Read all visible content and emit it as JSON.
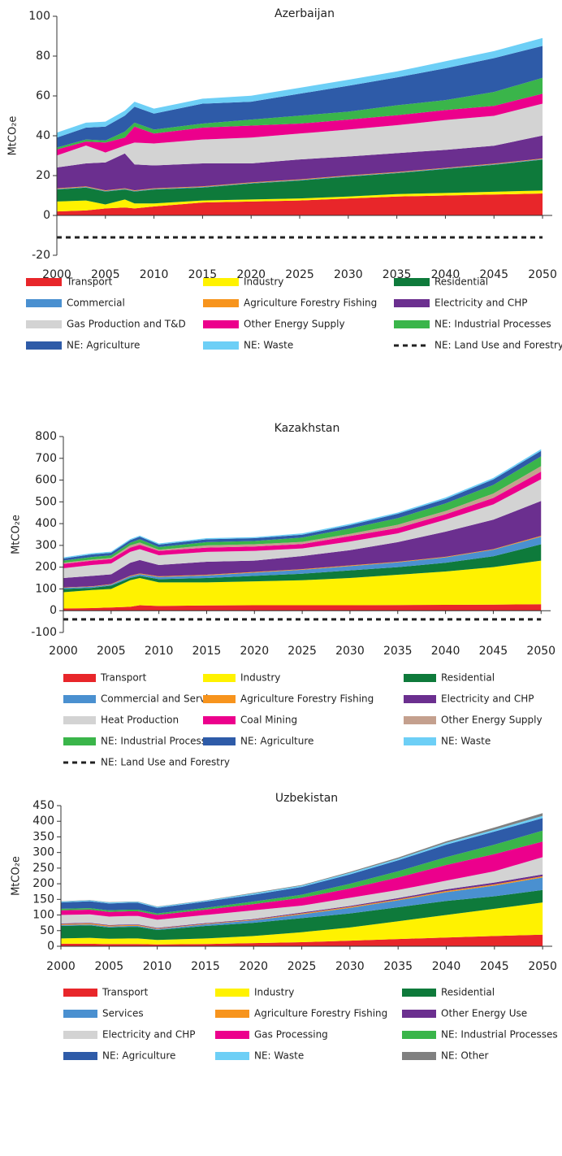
{
  "chart_data": [
    {
      "type": "stacked_area",
      "title": "Azerbaijan",
      "y_label": "MtCO₂e",
      "x": [
        2000,
        2003,
        2005,
        2007,
        2008,
        2010,
        2015,
        2020,
        2025,
        2030,
        2035,
        2040,
        2045,
        2050
      ],
      "xlim": [
        2000,
        2051
      ],
      "xticks": [
        2000,
        2005,
        2010,
        2015,
        2020,
        2025,
        2030,
        2035,
        2040,
        2045,
        2050
      ],
      "ylim": [
        -20,
        100
      ],
      "yticks": [
        -20,
        0,
        20,
        40,
        60,
        80,
        100
      ],
      "series": [
        {
          "name": "Transport",
          "color": "#e8262a",
          "values": [
            2,
            2.5,
            3.5,
            4,
            3.5,
            4.5,
            6.5,
            7,
            7.5,
            8.5,
            9.5,
            10,
            10.5,
            11
          ]
        },
        {
          "name": "Industry",
          "color": "#fff200",
          "values": [
            5,
            5,
            2,
            4,
            2.5,
            1.5,
            1,
            1,
            1,
            1,
            1.2,
            1.3,
            1.4,
            1.5
          ]
        },
        {
          "name": "Residential",
          "color": "#0e7a3b",
          "values": [
            6,
            6.5,
            6.5,
            5,
            6,
            7,
            6.5,
            8,
            9,
            10,
            10.5,
            12,
            13.5,
            15.5
          ]
        },
        {
          "name": "Commercial",
          "color": "#4a90d0",
          "values": [
            0.3,
            0.3,
            0.3,
            0.3,
            0.3,
            0.3,
            0.3,
            0.3,
            0.3,
            0.3,
            0.3,
            0.3,
            0.3,
            0.3
          ]
        },
        {
          "name": "Agriculture Forestry Fishing",
          "color": "#f7941d",
          "values": [
            0.3,
            0.3,
            0.3,
            0.3,
            0.3,
            0.3,
            0.3,
            0.3,
            0.3,
            0.3,
            0.3,
            0.3,
            0.3,
            0.3
          ]
        },
        {
          "name": "Electricity and CHP",
          "color": "#6b2f8f",
          "values": [
            10.5,
            11.5,
            14,
            17.5,
            13,
            11.5,
            11.5,
            9.5,
            10,
            9.5,
            9.5,
            9,
            9,
            11.5
          ]
        },
        {
          "name": "Gas Production and T&D",
          "color": "#d3d3d3",
          "values": [
            6,
            9,
            5,
            4,
            11,
            11,
            12,
            13,
            13,
            13.5,
            14,
            15,
            15,
            16
          ]
        },
        {
          "name": "Other Energy Supply",
          "color": "#ec008c",
          "values": [
            3,
            2,
            5,
            4,
            8,
            5,
            6,
            6,
            5,
            5,
            5,
            5,
            5,
            5
          ]
        },
        {
          "name": "NE: Industrial Processes",
          "color": "#3ab54a",
          "values": [
            1,
            1,
            1,
            3,
            2,
            2,
            2,
            3,
            4,
            4,
            5,
            5,
            7,
            8
          ]
        },
        {
          "name": "NE: Agriculture",
          "color": "#2e5ba8",
          "values": [
            5,
            6,
            7,
            8,
            8,
            8,
            10,
            9,
            11,
            13,
            14,
            16,
            17,
            16
          ]
        },
        {
          "name": "NE: Waste",
          "color": "#6dcff6",
          "values": [
            2.5,
            2.5,
            2.5,
            2.5,
            2.5,
            2.5,
            2.5,
            3,
            3,
            3,
            3,
            3.5,
            3.5,
            4
          ]
        },
        {
          "name": "NE: Land Use and Forestry",
          "color": "#222222",
          "line_style": "dashed",
          "values": [
            -11,
            -11,
            -11,
            -11,
            -11,
            -11,
            -11,
            -11,
            -11,
            -11,
            -11,
            -11,
            -11,
            -11
          ]
        }
      ]
    },
    {
      "type": "stacked_area",
      "title": "Kazakhstan",
      "y_label": "MtCO₂e",
      "x": [
        2000,
        2003,
        2005,
        2007,
        2008,
        2010,
        2015,
        2020,
        2025,
        2030,
        2035,
        2040,
        2045,
        2050
      ],
      "xlim": [
        2000,
        2051
      ],
      "xticks": [
        2000,
        2005,
        2010,
        2015,
        2020,
        2025,
        2030,
        2035,
        2040,
        2045,
        2050
      ],
      "ylim": [
        -100,
        800
      ],
      "yticks": [
        -100,
        0,
        100,
        200,
        300,
        400,
        500,
        600,
        700,
        800
      ],
      "series": [
        {
          "name": "Transport",
          "color": "#e8262a",
          "values": [
            10,
            12,
            15,
            18,
            25,
            22,
            24,
            25,
            25,
            25,
            26,
            27,
            28,
            30
          ]
        },
        {
          "name": "Industry",
          "color": "#fff200",
          "values": [
            75,
            83,
            85,
            122,
            125,
            108,
            106,
            110,
            115,
            125,
            139,
            153,
            172,
            200
          ]
        },
        {
          "name": "Residential",
          "color": "#0e7a3b",
          "values": [
            15,
            10,
            15,
            10,
            10,
            15,
            20,
            25,
            30,
            35,
            35,
            40,
            50,
            75
          ]
        },
        {
          "name": "Commercial and Services",
          "color": "#4a90d0",
          "values": [
            5,
            5,
            5,
            8,
            8,
            10,
            12,
            15,
            18,
            20,
            22,
            25,
            30,
            35
          ]
        },
        {
          "name": "Agriculture Forestry Fishing",
          "color": "#f7941d",
          "values": [
            2,
            2,
            2,
            3,
            3,
            3,
            3,
            3,
            3,
            3,
            3,
            3,
            3,
            4
          ]
        },
        {
          "name": "Electricity and CHP",
          "color": "#6b2f8f",
          "values": [
            43,
            48,
            45,
            59,
            62,
            52,
            60,
            52,
            60,
            70,
            90,
            115,
            135,
            160
          ]
        },
        {
          "name": "Heat Production",
          "color": "#d3d3d3",
          "values": [
            45,
            50,
            50,
            50,
            50,
            45,
            45,
            45,
            35,
            40,
            40,
            55,
            70,
            100
          ]
        },
        {
          "name": "Coal Mining",
          "color": "#ec008c",
          "values": [
            20,
            20,
            20,
            20,
            20,
            20,
            20,
            20,
            20,
            25,
            25,
            25,
            30,
            35
          ]
        },
        {
          "name": "Other Energy Supply",
          "color": "#c4a08e",
          "values": [
            5,
            5,
            5,
            10,
            10,
            5,
            10,
            10,
            10,
            10,
            15,
            15,
            20,
            25
          ]
        },
        {
          "name": "NE: Industrial Processes",
          "color": "#3ab54a",
          "values": [
            10,
            12,
            12,
            12,
            15,
            12,
            15,
            15,
            20,
            25,
            30,
            35,
            40,
            45
          ]
        },
        {
          "name": "NE: Agriculture",
          "color": "#2e5ba8",
          "values": [
            10,
            12,
            12,
            12,
            12,
            12,
            13,
            13,
            13,
            15,
            20,
            20,
            25,
            25
          ]
        },
        {
          "name": "NE: Waste",
          "color": "#6dcff6",
          "values": [
            5,
            5,
            5,
            5,
            5,
            5,
            5,
            5,
            6,
            6,
            6,
            7,
            7,
            8
          ]
        },
        {
          "name": "NE: Land Use and Forestry",
          "color": "#222222",
          "line_style": "dashed",
          "values": [
            -40,
            -40,
            -40,
            -40,
            -40,
            -40,
            -40,
            -40,
            -40,
            -40,
            -40,
            -40,
            -40,
            -40
          ]
        }
      ]
    },
    {
      "type": "stacked_area",
      "title": "Uzbekistan",
      "y_label": "MtCO₂e",
      "x": [
        2000,
        2003,
        2005,
        2007,
        2008,
        2010,
        2015,
        2020,
        2025,
        2030,
        2035,
        2040,
        2045,
        2050
      ],
      "xlim": [
        2000,
        2051
      ],
      "xticks": [
        2000,
        2005,
        2010,
        2015,
        2020,
        2025,
        2030,
        2035,
        2040,
        2045,
        2050
      ],
      "ylim": [
        0,
        450
      ],
      "yticks": [
        0,
        50,
        100,
        150,
        200,
        250,
        300,
        350,
        400,
        450
      ],
      "series": [
        {
          "name": "Transport",
          "color": "#e8262a",
          "values": [
            8,
            8,
            7,
            7,
            7,
            6,
            7,
            10,
            13,
            18,
            23,
            28,
            33,
            37
          ]
        },
        {
          "name": "Industry",
          "color": "#fff200",
          "values": [
            17,
            19,
            17,
            18,
            18,
            14,
            18,
            23,
            32,
            42,
            57,
            72,
            87,
            103
          ]
        },
        {
          "name": "Residential",
          "color": "#0e7a3b",
          "values": [
            40,
            40,
            36,
            37,
            37,
            32,
            40,
            42,
            45,
            45,
            45,
            45,
            40,
            40
          ]
        },
        {
          "name": "Services",
          "color": "#4a90d0",
          "values": [
            3,
            3,
            3,
            3,
            3,
            3,
            5,
            8,
            12,
            18,
            22,
            28,
            34,
            40
          ]
        },
        {
          "name": "Agriculture Forestry Fishing",
          "color": "#f7941d",
          "values": [
            3,
            3,
            3,
            3,
            3,
            2,
            2,
            2,
            3,
            3,
            3,
            4,
            4,
            4
          ]
        },
        {
          "name": "Other Energy Use",
          "color": "#6b2f8f",
          "values": [
            2,
            2,
            2,
            2,
            2,
            2,
            2,
            2,
            3,
            3,
            4,
            5,
            6,
            6
          ]
        },
        {
          "name": "Electricity and CHP",
          "color": "#d3d3d3",
          "values": [
            27,
            27,
            27,
            27,
            27,
            26,
            26,
            28,
            22,
            26,
            26,
            28,
            36,
            55
          ]
        },
        {
          "name": "Gas Processing",
          "color": "#ec008c",
          "values": [
            15,
            15,
            15,
            15,
            15,
            15,
            17,
            20,
            25,
            30,
            40,
            50,
            55,
            50
          ]
        },
        {
          "name": "NE: Industrial Processes",
          "color": "#3ab54a",
          "values": [
            5,
            5,
            5,
            5,
            5,
            5,
            6,
            8,
            10,
            15,
            20,
            25,
            30,
            35
          ]
        },
        {
          "name": "NE: Agriculture",
          "color": "#2e5ba8",
          "values": [
            20,
            22,
            22,
            22,
            22,
            18,
            20,
            22,
            25,
            30,
            35,
            40,
            42,
            40
          ]
        },
        {
          "name": "NE: Waste",
          "color": "#6dcff6",
          "values": [
            3,
            3,
            3,
            3,
            3,
            3,
            3,
            4,
            4,
            5,
            5,
            6,
            6,
            7
          ]
        },
        {
          "name": "NE: Other",
          "color": "#808080",
          "values": [
            1,
            1,
            1,
            1,
            1,
            1,
            1,
            2,
            2,
            3,
            4,
            5,
            7,
            9
          ]
        }
      ]
    }
  ]
}
